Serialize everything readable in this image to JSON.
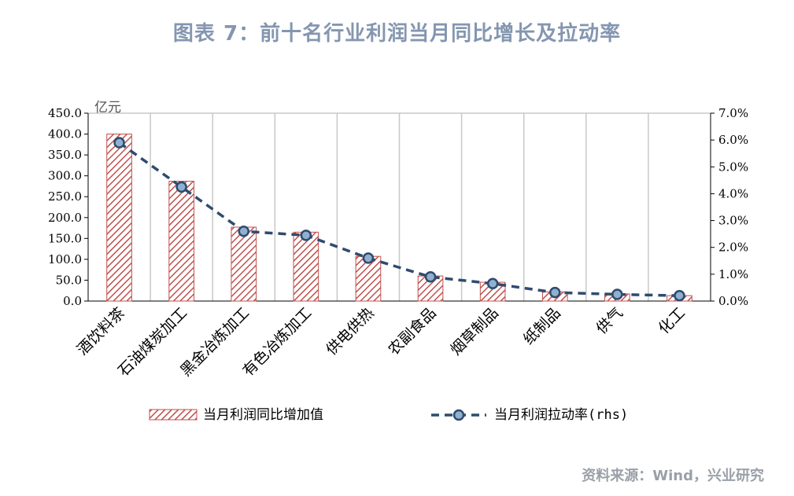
{
  "title": "图表 7：前十名行业利润当月同比增长及拉动率",
  "source": "资料来源：Wind，兴业研究",
  "colors": {
    "bar_hatch": "#c0504d",
    "line": "#2f4b6e",
    "marker_fill": "#8fb0cf",
    "grid": "#c8c8c8"
  },
  "chart_data": {
    "type": "bar",
    "categories": [
      "酒饮料茶",
      "石油煤炭加工",
      "黑金冶炼加工",
      "有色冶炼加工",
      "供电供热",
      "农副食品",
      "烟草制品",
      "纸制品",
      "供气",
      "化工"
    ],
    "series": [
      {
        "name": "当月利润同比增加值",
        "type": "bar",
        "axis": "left",
        "values": [
          400,
          287,
          177,
          165,
          107,
          60,
          45,
          22,
          17,
          13
        ]
      },
      {
        "name": "当月利润拉动率(rhs)",
        "type": "line",
        "axis": "right",
        "style": "dashed-with-markers",
        "values": [
          5.9,
          4.25,
          2.6,
          2.45,
          1.6,
          0.9,
          0.65,
          0.32,
          0.25,
          0.2
        ]
      }
    ],
    "ylabel": "亿元",
    "ylim": [
      0,
      450
    ],
    "yticks": [
      "450.0",
      "400.0",
      "350.0",
      "300.0",
      "250.0",
      "200.0",
      "150.0",
      "100.0",
      "50.0",
      "0.0"
    ],
    "y2lim": [
      0,
      7
    ],
    "y2ticks": [
      "7.0%",
      "6.0%",
      "5.0%",
      "4.0%",
      "3.0%",
      "2.0%",
      "1.0%",
      "0.0%"
    ],
    "grid": "vertical",
    "legend": "bottom"
  }
}
